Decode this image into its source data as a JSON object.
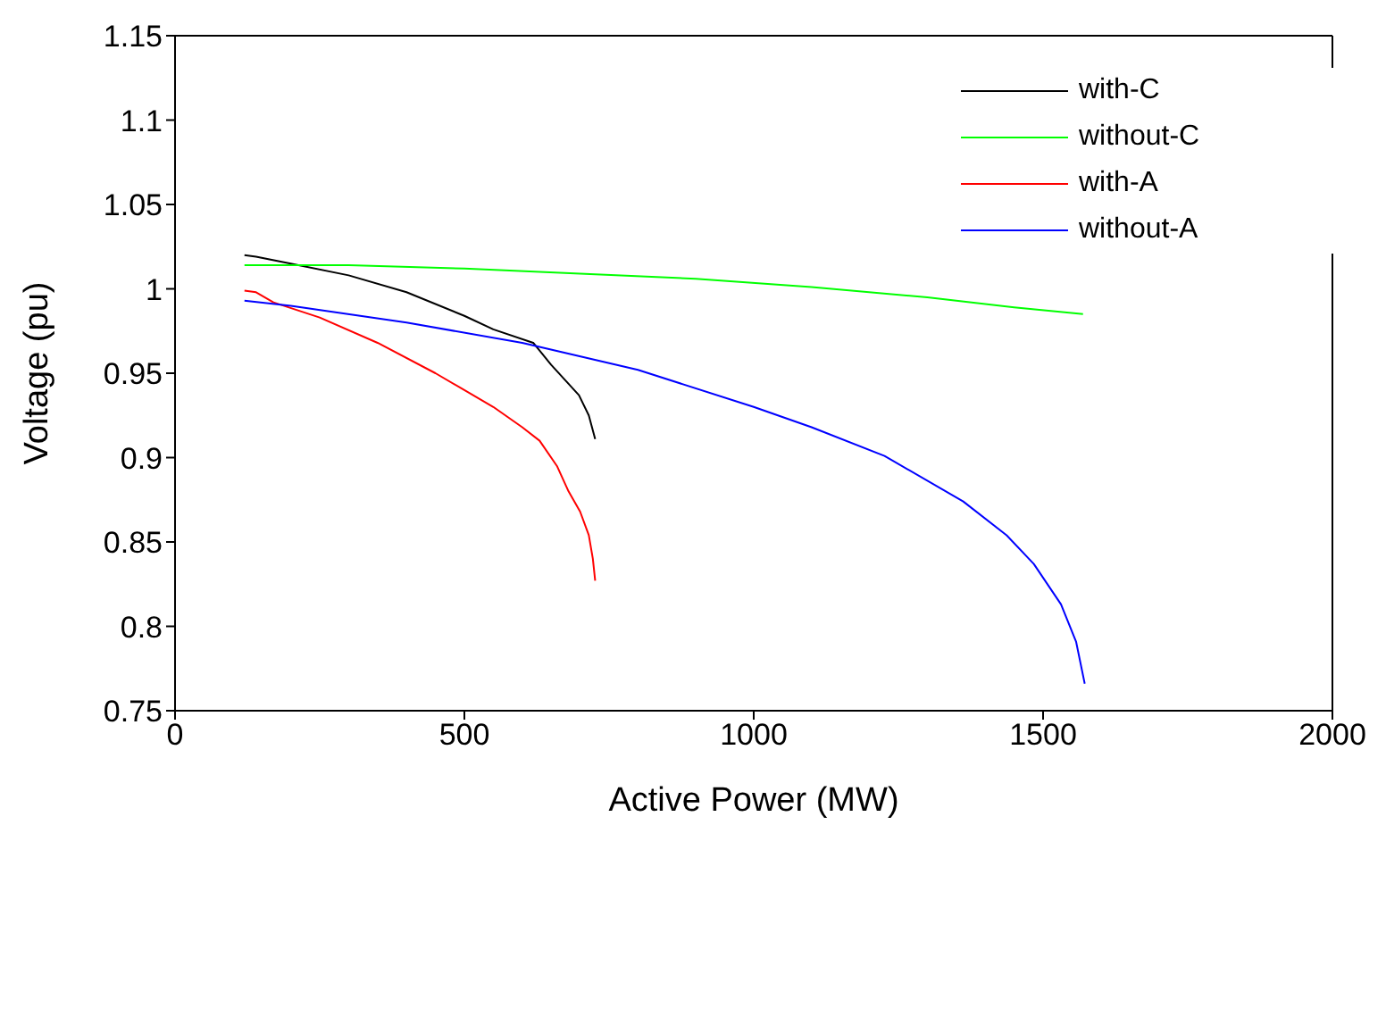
{
  "chart_data": {
    "type": "line",
    "xlabel": "Active Power (MW)",
    "ylabel": "Voltage (pu)",
    "xlim": [
      0,
      2000
    ],
    "xticks": [
      0,
      500,
      1000,
      1500,
      2000
    ],
    "ylim": [
      0.75,
      1.15
    ],
    "yticks": [
      0.75,
      0.8,
      0.85,
      0.9,
      0.95,
      1,
      1.05,
      1.1,
      1.15
    ],
    "legend": "top right",
    "marker": "none",
    "line_style": "solid",
    "series": [
      {
        "name": "with-C",
        "color": "#000000",
        "x": [
          120,
          140,
          200,
          300,
          400,
          500,
          550,
          619,
          650,
          698,
          715,
          726
        ],
        "values": [
          1.02,
          1.019,
          1.015,
          1.008,
          0.998,
          0.984,
          0.976,
          0.968,
          0.955,
          0.937,
          0.925,
          0.911
        ]
      },
      {
        "name": "without-C",
        "color": "#00ff00",
        "x": [
          120,
          300,
          500,
          700,
          900,
          1100,
          1300,
          1450,
          1569
        ],
        "values": [
          1.014,
          1.014,
          1.012,
          1.009,
          1.006,
          1.001,
          0.995,
          0.989,
          0.985
        ]
      },
      {
        "name": "with-A",
        "color": "#ff0000",
        "x": [
          120,
          140,
          170,
          250,
          350,
          450,
          500,
          550,
          600,
          630,
          660,
          680,
          700,
          715,
          722,
          726
        ],
        "values": [
          0.999,
          0.998,
          0.992,
          0.983,
          0.968,
          0.95,
          0.94,
          0.93,
          0.918,
          0.91,
          0.895,
          0.88,
          0.868,
          0.854,
          0.84,
          0.827
        ]
      },
      {
        "name": "without-A",
        "color": "#0000ff",
        "x": [
          120,
          200,
          400,
          600,
          800,
          1000,
          1100,
          1226,
          1362,
          1437,
          1484,
          1531,
          1557,
          1572
        ],
        "values": [
          0.993,
          0.99,
          0.98,
          0.968,
          0.952,
          0.93,
          0.918,
          0.901,
          0.874,
          0.854,
          0.837,
          0.813,
          0.791,
          0.766
        ]
      }
    ]
  }
}
